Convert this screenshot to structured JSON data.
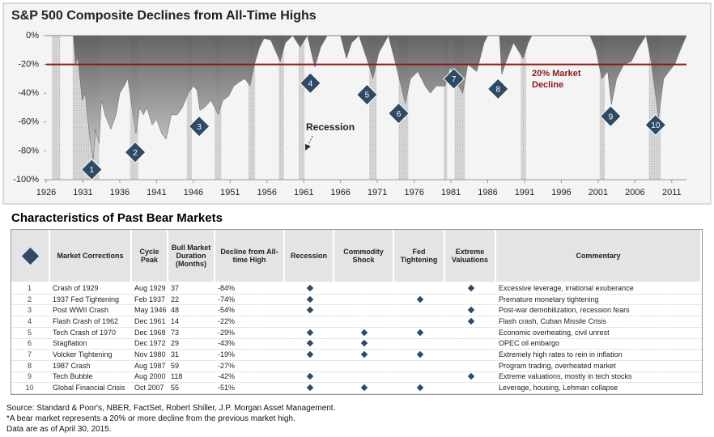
{
  "chart_data": {
    "type": "area",
    "title": "S&P 500 Composite Declines from All-Time Highs",
    "x": [
      1926,
      1929.7,
      1930.0,
      1930.3,
      1930.9,
      1931.3,
      1931.9,
      1932.4,
      1932.7,
      1933.2,
      1933.5,
      1934.0,
      1934.8,
      1935.5,
      1936.0,
      1936.6,
      1937.1,
      1937.8,
      1938.2,
      1938.7,
      1939.2,
      1939.7,
      1940.4,
      1941.0,
      1941.7,
      1942.3,
      1943.0,
      1943.8,
      1944.5,
      1945.3,
      1946.0,
      1946.5,
      1946.9,
      1947.5,
      1948.4,
      1949.4,
      1950.0,
      1950.8,
      1951.5,
      1952.3,
      1953.0,
      1953.7,
      1954.3,
      1955.0,
      1955.6,
      1956.5,
      1957.8,
      1958.5,
      1959.5,
      1960.5,
      1961.5,
      1962.5,
      1963.3,
      1964.2,
      1966.0,
      1966.8,
      1967.5,
      1968.5,
      1969.5,
      1970.4,
      1971.2,
      1972.5,
      1973.5,
      1974.8,
      1975.5,
      1976.5,
      1977.5,
      1978.2,
      1979.0,
      1980.2,
      1980.9,
      1981.5,
      1982.6,
      1983.3,
      1984.5,
      1985.5,
      1986.0,
      1987.6,
      1987.9,
      1988.5,
      1989.5,
      1990.8,
      1991.5,
      1992.0,
      1999.9,
      2000.7,
      2001.5,
      2002.3,
      2002.8,
      2003.5,
      2004.5,
      2005.5,
      2006.5,
      2007.5,
      2008.2,
      2008.9,
      2009.2,
      2009.9,
      2010.6,
      2011.4,
      2012.0,
      2013.0
    ],
    "values": [
      0,
      0,
      -20,
      -15,
      -45,
      -40,
      -70,
      -86,
      -65,
      -75,
      -45,
      -55,
      -65,
      -55,
      -40,
      -35,
      -30,
      -55,
      -68,
      -50,
      -55,
      -50,
      -62,
      -58,
      -68,
      -72,
      -55,
      -55,
      -50,
      -40,
      -35,
      -38,
      -52,
      -50,
      -45,
      -55,
      -45,
      -42,
      -35,
      -32,
      -30,
      -35,
      -20,
      -8,
      -2,
      -3,
      -18,
      -5,
      0,
      -8,
      0,
      -22,
      -8,
      0,
      0,
      -16,
      -5,
      0,
      -15,
      -30,
      -12,
      0,
      -20,
      -47,
      -30,
      -25,
      -35,
      -40,
      -35,
      -35,
      -22,
      -30,
      -40,
      -20,
      -25,
      -5,
      0,
      0,
      -27,
      -18,
      -5,
      -16,
      -5,
      0,
      0,
      -10,
      -30,
      -25,
      -48,
      -30,
      -20,
      -18,
      -8,
      0,
      -18,
      -45,
      -57,
      -30,
      -25,
      -20,
      -12,
      0
    ],
    "color": "#5f5f5f",
    "xlim": [
      1926,
      2013
    ],
    "xticks": [
      1926,
      1931,
      1936,
      1941,
      1946,
      1951,
      1956,
      1961,
      1966,
      1971,
      1976,
      1981,
      1986,
      1991,
      1996,
      2001,
      2006,
      2011
    ],
    "ylim": [
      -100,
      0
    ],
    "yticks": [
      {
        "value": 0,
        "label": "0%"
      },
      {
        "value": -20,
        "label": "-20%"
      },
      {
        "value": -40,
        "label": "-40%"
      },
      {
        "value": -60,
        "label": "-60%"
      },
      {
        "value": -80,
        "label": "-80%"
      },
      {
        "value": -100,
        "label": "-100%"
      }
    ],
    "recessions": [
      [
        1926.8,
        1927.9
      ],
      [
        1929.6,
        1933.2
      ],
      [
        1937.4,
        1938.5
      ],
      [
        1945.1,
        1945.8
      ],
      [
        1948.9,
        1949.8
      ],
      [
        1953.5,
        1954.4
      ],
      [
        1957.6,
        1958.3
      ],
      [
        1960.3,
        1961.1
      ],
      [
        1969.9,
        1970.9
      ],
      [
        1973.9,
        1975.2
      ],
      [
        1980.0,
        1980.5
      ],
      [
        1981.5,
        1982.9
      ],
      [
        1990.5,
        1991.2
      ],
      [
        2001.2,
        2001.9
      ],
      [
        2007.9,
        2009.5
      ]
    ],
    "recession_label": "Recession",
    "ref_line": {
      "value": -20,
      "label": "20% Market Decline",
      "color": "#8b1a1a"
    },
    "markers": [
      {
        "label": "1",
        "x": 1932.2,
        "y": -93
      },
      {
        "label": "2",
        "x": 1938.1,
        "y": -81
      },
      {
        "label": "3",
        "x": 1946.8,
        "y": -63
      },
      {
        "label": "4",
        "x": 1961.9,
        "y": -33
      },
      {
        "label": "5",
        "x": 1969.6,
        "y": -41
      },
      {
        "label": "6",
        "x": 1973.9,
        "y": -54
      },
      {
        "label": "7",
        "x": 1981.4,
        "y": -30
      },
      {
        "label": "8",
        "x": 1987.4,
        "y": -37
      },
      {
        "label": "9",
        "x": 2002.7,
        "y": -56
      },
      {
        "label": "10",
        "x": 2008.8,
        "y": -62
      }
    ]
  },
  "table": {
    "title": "Characteristics of Past Bear Markets",
    "headers": [
      "Market Corrections",
      "Cycle Peak",
      "Bull Market Duration (Months)",
      "Decline from All-time High",
      "Recession",
      "Commodity Shock",
      "Fed Tightening",
      "Extreme Valuations",
      "Commentary"
    ],
    "rows": [
      [
        "1",
        "Crash of 1929",
        "Aug 1929",
        "37",
        "-84%",
        true,
        false,
        false,
        true,
        "Excessive leverage, irrational exuberance"
      ],
      [
        "2",
        "1937 Fed Tightening",
        "Feb 1937",
        "22",
        "-74%",
        true,
        false,
        true,
        false,
        "Premature monetary tightening"
      ],
      [
        "3",
        "Post WWII Crash",
        "May 1946",
        "48",
        "-54%",
        true,
        false,
        false,
        true,
        "Post-war demobilization, recession fears"
      ],
      [
        "4",
        "Flash Crash of 1962",
        "Dec 1961",
        "14",
        "-22%",
        false,
        false,
        false,
        true,
        "Flash crash, Cuban Missile Crisis"
      ],
      [
        "5",
        "Tech Crash of 1970",
        "Dec 1968",
        "73",
        "-29%",
        true,
        true,
        true,
        false,
        "Economic overheating, civil unrest"
      ],
      [
        "6",
        "Stagflation",
        "Dec 1972",
        "29",
        "-43%",
        true,
        true,
        false,
        false,
        "OPEC oil embargo"
      ],
      [
        "7",
        "Volcker Tightening",
        "Nov 1980",
        "31",
        "-19%",
        true,
        true,
        true,
        false,
        "Extremely high rates to rein in inflation"
      ],
      [
        "8",
        "1987 Crash",
        "Aug 1987",
        "59",
        "-27%",
        false,
        false,
        false,
        false,
        "Program trading, overheated market"
      ],
      [
        "9",
        "Tech Bubble",
        "Aug 2000",
        "118",
        "-42%",
        true,
        false,
        false,
        true,
        "Extreme valuations, mostly in tech stocks"
      ],
      [
        "10",
        "Global Financial Crisis",
        "Oct 2007",
        "55",
        "-51%",
        true,
        true,
        true,
        false,
        "Leverage, housing, Lehman collapse"
      ]
    ]
  },
  "notes": [
    "Source: Standard & Poor's, NBER, FactSet, Robert Shiller, J.P. Morgan Asset Management.",
    "*A bear market represents a 20% or more decline from the previous market high.",
    "Data are as of April 30, 2015."
  ]
}
